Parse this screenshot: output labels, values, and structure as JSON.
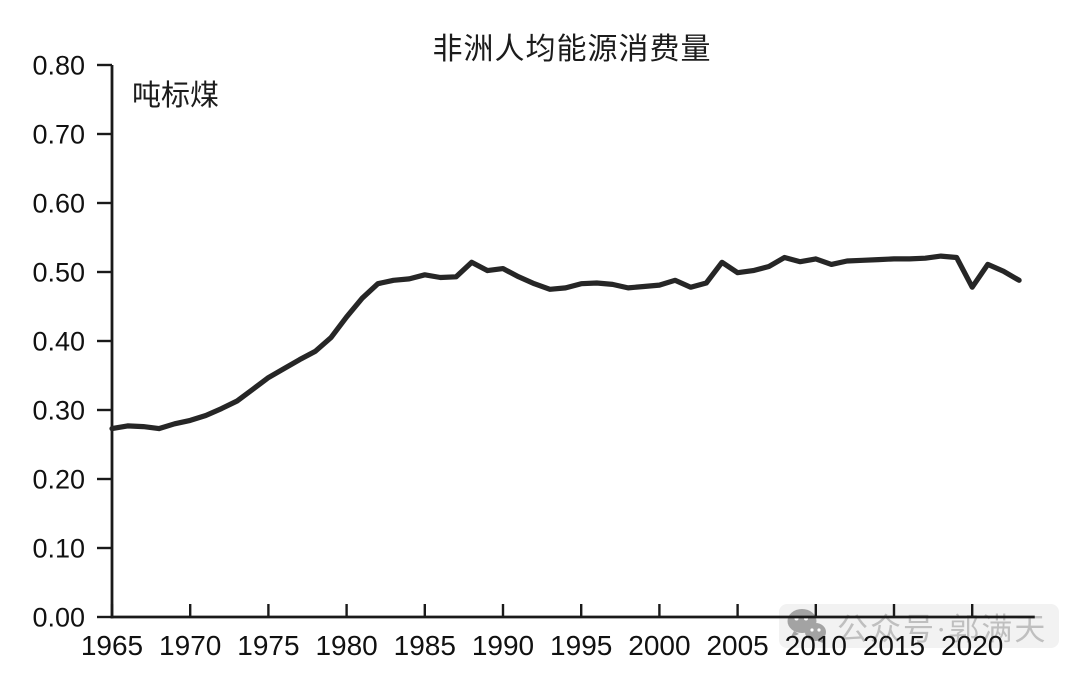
{
  "chart_data": {
    "type": "line",
    "title": "非洲人均能源消费量",
    "ylabel": "吨标煤",
    "xlabel": "",
    "grid": false,
    "legend": null,
    "line_color": "#262626",
    "axis_color": "#1a1a1a",
    "ylim": [
      0.0,
      0.8
    ],
    "xlim": [
      1965,
      2024
    ],
    "y_ticks": [
      "0.00",
      "0.10",
      "0.20",
      "0.30",
      "0.40",
      "0.50",
      "0.60",
      "0.70",
      "0.80"
    ],
    "x_ticks": [
      "1965",
      "1970",
      "1975",
      "1980",
      "1985",
      "1990",
      "1995",
      "2000",
      "2005",
      "2010",
      "2015",
      "2020"
    ],
    "x": [
      1965,
      1966,
      1967,
      1968,
      1969,
      1970,
      1971,
      1972,
      1973,
      1974,
      1975,
      1976,
      1977,
      1978,
      1979,
      1980,
      1981,
      1982,
      1983,
      1984,
      1985,
      1986,
      1987,
      1988,
      1989,
      1990,
      1991,
      1992,
      1993,
      1994,
      1995,
      1996,
      1997,
      1998,
      1999,
      2000,
      2001,
      2002,
      2003,
      2004,
      2005,
      2006,
      2007,
      2008,
      2009,
      2010,
      2011,
      2012,
      2013,
      2014,
      2015,
      2016,
      2017,
      2018,
      2019,
      2020,
      2021,
      2022,
      2023
    ],
    "values": [
      0.273,
      0.277,
      0.276,
      0.273,
      0.28,
      0.285,
      0.292,
      0.302,
      0.313,
      0.33,
      0.347,
      0.36,
      0.373,
      0.385,
      0.405,
      0.435,
      0.462,
      0.483,
      0.488,
      0.49,
      0.496,
      0.492,
      0.493,
      0.514,
      0.502,
      0.505,
      0.493,
      0.483,
      0.475,
      0.477,
      0.483,
      0.484,
      0.482,
      0.477,
      0.479,
      0.481,
      0.488,
      0.478,
      0.484,
      0.514,
      0.499,
      0.502,
      0.508,
      0.521,
      0.515,
      0.519,
      0.511,
      0.516,
      0.517,
      0.518,
      0.519,
      0.519,
      0.52,
      0.523,
      0.521,
      0.478,
      0.511,
      0.501,
      0.488
    ]
  },
  "watermark": {
    "text": "公众号·郭满天",
    "icon": "wechat-icon",
    "color": "#bfbfbf"
  }
}
